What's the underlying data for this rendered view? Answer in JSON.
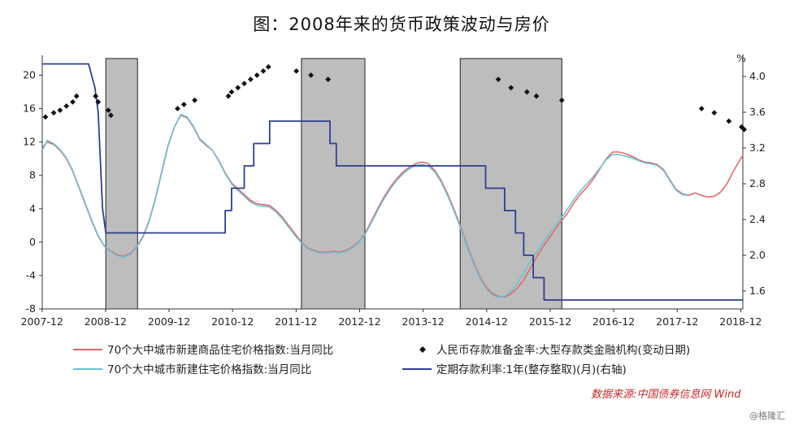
{
  "title": "图：2008年来的货币政策波动与房价",
  "source": "数据来源:中国债券信息网 Wind",
  "watermark": "@格隆汇",
  "chart_data": {
    "type": "line",
    "left_axis": {
      "ticks": [
        20,
        16,
        12,
        8,
        4,
        0,
        -4,
        -8
      ],
      "ylim": [
        -8,
        22
      ]
    },
    "right_axis": {
      "unit": "%",
      "ticks": [
        "4.0",
        "3.6",
        "3.2",
        "2.8",
        "2.4",
        "2.0",
        "1.6"
      ],
      "ylim": [
        1.4,
        4.2
      ]
    },
    "x_ticks": [
      "2007-12",
      "2008-12",
      "2009-12",
      "2010-12",
      "2011-12",
      "2012-12",
      "2013-12",
      "2014-12",
      "2015-12",
      "2016-12",
      "2017-12",
      "2018-12"
    ],
    "xlim": [
      2007.92,
      2018.95
    ],
    "shaded_periods": [
      [
        2008.92,
        2009.42
      ],
      [
        2012.0,
        2013.0
      ],
      [
        2014.5,
        2016.1
      ]
    ],
    "series": [
      {
        "name": "70个大中城市新建商品住宅价格指数:当月同比",
        "color": "#e06a6a",
        "axis": "left",
        "points": [
          [
            2007.92,
            11.3
          ],
          [
            2008.0,
            12.0
          ],
          [
            2008.1,
            11.7
          ],
          [
            2008.2,
            11.0
          ],
          [
            2008.3,
            10.0
          ],
          [
            2008.4,
            8.5
          ],
          [
            2008.5,
            6.5
          ],
          [
            2008.6,
            4.5
          ],
          [
            2008.7,
            2.5
          ],
          [
            2008.8,
            0.7
          ],
          [
            2008.9,
            -0.5
          ],
          [
            2009.0,
            -1.1
          ],
          [
            2009.1,
            -1.5
          ],
          [
            2009.2,
            -1.7
          ],
          [
            2009.3,
            -1.4
          ],
          [
            2009.4,
            -0.6
          ],
          [
            2009.5,
            0.6
          ],
          [
            2009.6,
            2.5
          ],
          [
            2009.7,
            5.2
          ],
          [
            2009.8,
            8.4
          ],
          [
            2009.9,
            11.6
          ],
          [
            2010.0,
            13.8
          ],
          [
            2010.1,
            15.2
          ],
          [
            2010.2,
            14.9
          ],
          [
            2010.3,
            13.8
          ],
          [
            2010.4,
            12.3
          ],
          [
            2010.5,
            11.6
          ],
          [
            2010.6,
            11.0
          ],
          [
            2010.7,
            9.8
          ],
          [
            2010.8,
            8.3
          ],
          [
            2010.9,
            7.1
          ],
          [
            2011.0,
            6.4
          ],
          [
            2011.1,
            5.7
          ],
          [
            2011.2,
            5.0
          ],
          [
            2011.3,
            4.6
          ],
          [
            2011.4,
            4.5
          ],
          [
            2011.5,
            4.4
          ],
          [
            2011.6,
            3.8
          ],
          [
            2011.7,
            3.0
          ],
          [
            2011.8,
            2.0
          ],
          [
            2011.9,
            1.0
          ],
          [
            2012.0,
            0.0
          ],
          [
            2012.1,
            -0.7
          ],
          [
            2012.2,
            -1.0
          ],
          [
            2012.3,
            -1.2
          ],
          [
            2012.4,
            -1.2
          ],
          [
            2012.5,
            -1.1
          ],
          [
            2012.6,
            -1.2
          ],
          [
            2012.7,
            -1.0
          ],
          [
            2012.8,
            -0.6
          ],
          [
            2012.9,
            0.0
          ],
          [
            2013.0,
            1.0
          ],
          [
            2013.1,
            2.5
          ],
          [
            2013.2,
            4.0
          ],
          [
            2013.3,
            5.4
          ],
          [
            2013.4,
            6.6
          ],
          [
            2013.5,
            7.6
          ],
          [
            2013.6,
            8.4
          ],
          [
            2013.7,
            9.0
          ],
          [
            2013.8,
            9.4
          ],
          [
            2013.9,
            9.6
          ],
          [
            2014.0,
            9.4
          ],
          [
            2014.1,
            8.6
          ],
          [
            2014.2,
            7.4
          ],
          [
            2014.3,
            5.8
          ],
          [
            2014.4,
            4.0
          ],
          [
            2014.5,
            2.0
          ],
          [
            2014.6,
            -0.2
          ],
          [
            2014.7,
            -2.2
          ],
          [
            2014.8,
            -4.0
          ],
          [
            2014.9,
            -5.3
          ],
          [
            2015.0,
            -6.1
          ],
          [
            2015.1,
            -6.5
          ],
          [
            2015.2,
            -6.6
          ],
          [
            2015.3,
            -6.2
          ],
          [
            2015.4,
            -5.5
          ],
          [
            2015.5,
            -4.5
          ],
          [
            2015.6,
            -3.2
          ],
          [
            2015.7,
            -1.8
          ],
          [
            2015.8,
            -0.6
          ],
          [
            2015.9,
            0.5
          ],
          [
            2016.0,
            1.6
          ],
          [
            2016.1,
            2.6
          ],
          [
            2016.2,
            3.6
          ],
          [
            2016.3,
            4.8
          ],
          [
            2016.4,
            5.8
          ],
          [
            2016.5,
            6.6
          ],
          [
            2016.6,
            7.6
          ],
          [
            2016.7,
            8.8
          ],
          [
            2016.8,
            10.0
          ],
          [
            2016.9,
            10.8
          ],
          [
            2017.0,
            10.8
          ],
          [
            2017.1,
            10.6
          ],
          [
            2017.2,
            10.3
          ],
          [
            2017.3,
            9.9
          ],
          [
            2017.4,
            9.6
          ],
          [
            2017.5,
            9.5
          ],
          [
            2017.6,
            9.3
          ],
          [
            2017.7,
            8.7
          ],
          [
            2017.8,
            7.5
          ],
          [
            2017.9,
            6.3
          ],
          [
            2018.0,
            5.8
          ],
          [
            2018.1,
            5.6
          ],
          [
            2018.2,
            5.9
          ],
          [
            2018.3,
            5.6
          ],
          [
            2018.4,
            5.4
          ],
          [
            2018.5,
            5.5
          ],
          [
            2018.6,
            6.0
          ],
          [
            2018.7,
            7.0
          ],
          [
            2018.8,
            8.5
          ],
          [
            2018.9,
            9.8
          ],
          [
            2018.95,
            10.4
          ]
        ]
      },
      {
        "name": "70个大中城市新建住宅价格指数:当月同比",
        "color": "#6fbfd4",
        "axis": "left",
        "points": [
          [
            2007.92,
            11.0
          ],
          [
            2008.0,
            12.2
          ],
          [
            2008.1,
            11.8
          ],
          [
            2008.2,
            11.1
          ],
          [
            2008.3,
            10.1
          ],
          [
            2008.4,
            8.6
          ],
          [
            2008.5,
            6.6
          ],
          [
            2008.6,
            4.6
          ],
          [
            2008.7,
            2.6
          ],
          [
            2008.8,
            0.8
          ],
          [
            2008.9,
            -0.5
          ],
          [
            2009.0,
            -1.2
          ],
          [
            2009.1,
            -1.6
          ],
          [
            2009.2,
            -1.8
          ],
          [
            2009.3,
            -1.5
          ],
          [
            2009.4,
            -0.7
          ],
          [
            2009.5,
            0.5
          ],
          [
            2009.6,
            2.4
          ],
          [
            2009.7,
            5.1
          ],
          [
            2009.8,
            8.3
          ],
          [
            2009.9,
            11.5
          ],
          [
            2010.0,
            13.8
          ],
          [
            2010.1,
            15.3
          ],
          [
            2010.2,
            15.0
          ],
          [
            2010.3,
            13.9
          ],
          [
            2010.4,
            12.4
          ],
          [
            2010.5,
            11.7
          ],
          [
            2010.6,
            11.0
          ],
          [
            2010.7,
            9.7
          ],
          [
            2010.8,
            8.2
          ],
          [
            2010.9,
            7.0
          ],
          [
            2011.0,
            6.2
          ],
          [
            2011.1,
            5.5
          ],
          [
            2011.2,
            4.8
          ],
          [
            2011.3,
            4.4
          ],
          [
            2011.4,
            4.3
          ],
          [
            2011.5,
            4.2
          ],
          [
            2011.6,
            3.6
          ],
          [
            2011.7,
            2.8
          ],
          [
            2011.8,
            1.8
          ],
          [
            2011.9,
            0.8
          ],
          [
            2012.0,
            -0.1
          ],
          [
            2012.1,
            -0.8
          ],
          [
            2012.2,
            -1.1
          ],
          [
            2012.3,
            -1.3
          ],
          [
            2012.4,
            -1.3
          ],
          [
            2012.5,
            -1.2
          ],
          [
            2012.6,
            -1.3
          ],
          [
            2012.7,
            -1.1
          ],
          [
            2012.8,
            -0.7
          ],
          [
            2012.9,
            -0.1
          ],
          [
            2013.0,
            0.9
          ],
          [
            2013.1,
            2.3
          ],
          [
            2013.2,
            3.8
          ],
          [
            2013.3,
            5.2
          ],
          [
            2013.4,
            6.4
          ],
          [
            2013.5,
            7.4
          ],
          [
            2013.6,
            8.2
          ],
          [
            2013.7,
            8.8
          ],
          [
            2013.8,
            9.2
          ],
          [
            2013.9,
            9.3
          ],
          [
            2014.0,
            9.1
          ],
          [
            2014.1,
            8.4
          ],
          [
            2014.2,
            7.2
          ],
          [
            2014.3,
            5.6
          ],
          [
            2014.4,
            3.8
          ],
          [
            2014.5,
            1.8
          ],
          [
            2014.6,
            -0.4
          ],
          [
            2014.7,
            -2.4
          ],
          [
            2014.8,
            -4.2
          ],
          [
            2014.9,
            -5.5
          ],
          [
            2015.0,
            -6.3
          ],
          [
            2015.1,
            -6.6
          ],
          [
            2015.2,
            -6.5
          ],
          [
            2015.3,
            -5.9
          ],
          [
            2015.4,
            -4.9
          ],
          [
            2015.5,
            -3.7
          ],
          [
            2015.6,
            -2.4
          ],
          [
            2015.7,
            -1.2
          ],
          [
            2015.8,
            -0.1
          ],
          [
            2015.9,
            1.0
          ],
          [
            2016.0,
            2.0
          ],
          [
            2016.1,
            3.0
          ],
          [
            2016.2,
            4.1
          ],
          [
            2016.3,
            5.2
          ],
          [
            2016.4,
            6.2
          ],
          [
            2016.5,
            7.0
          ],
          [
            2016.6,
            7.9
          ],
          [
            2016.7,
            8.9
          ],
          [
            2016.8,
            9.9
          ],
          [
            2016.9,
            10.5
          ],
          [
            2017.0,
            10.5
          ],
          [
            2017.1,
            10.3
          ],
          [
            2017.2,
            10.1
          ],
          [
            2017.3,
            9.8
          ],
          [
            2017.4,
            9.5
          ],
          [
            2017.5,
            9.4
          ],
          [
            2017.6,
            9.2
          ],
          [
            2017.7,
            8.6
          ],
          [
            2017.8,
            7.4
          ],
          [
            2017.9,
            6.2
          ],
          [
            2018.0,
            5.7
          ],
          [
            2018.1,
            5.6
          ]
        ]
      },
      {
        "name": "定期存款利率:1年(整存整取)(月)(右轴)",
        "color": "#2d3f8f",
        "axis": "right",
        "step": true,
        "points": [
          [
            2007.92,
            4.14
          ],
          [
            2008.65,
            4.14
          ],
          [
            2008.75,
            3.87
          ],
          [
            2008.8,
            3.6
          ],
          [
            2008.87,
            2.52
          ],
          [
            2008.92,
            2.25
          ],
          [
            2010.8,
            2.25
          ],
          [
            2010.8,
            2.5
          ],
          [
            2010.9,
            2.5
          ],
          [
            2010.9,
            2.75
          ],
          [
            2011.1,
            2.75
          ],
          [
            2011.1,
            3.0
          ],
          [
            2011.25,
            3.0
          ],
          [
            2011.25,
            3.25
          ],
          [
            2011.5,
            3.25
          ],
          [
            2011.5,
            3.5
          ],
          [
            2012.45,
            3.5
          ],
          [
            2012.45,
            3.25
          ],
          [
            2012.55,
            3.25
          ],
          [
            2012.55,
            3.0
          ],
          [
            2014.9,
            3.0
          ],
          [
            2014.9,
            2.75
          ],
          [
            2015.2,
            2.75
          ],
          [
            2015.2,
            2.5
          ],
          [
            2015.37,
            2.5
          ],
          [
            2015.37,
            2.25
          ],
          [
            2015.5,
            2.25
          ],
          [
            2015.5,
            2.0
          ],
          [
            2015.65,
            2.0
          ],
          [
            2015.65,
            1.75
          ],
          [
            2015.82,
            1.75
          ],
          [
            2015.82,
            1.5
          ],
          [
            2018.95,
            1.5
          ]
        ]
      },
      {
        "name": "人民币存款准备金率:大型存款类金融机构(变动日期)",
        "color": "#111111",
        "axis": "left",
        "marker": "diamond",
        "points": [
          [
            2007.97,
            15.0
          ],
          [
            2008.1,
            15.5
          ],
          [
            2008.2,
            15.8
          ],
          [
            2008.3,
            16.3
          ],
          [
            2008.4,
            16.8
          ],
          [
            2008.46,
            17.5
          ],
          [
            2008.76,
            17.5
          ],
          [
            2008.8,
            16.8
          ],
          [
            2008.96,
            15.8
          ],
          [
            2009.0,
            15.2
          ],
          [
            2010.05,
            16.0
          ],
          [
            2010.15,
            16.5
          ],
          [
            2010.32,
            17.0
          ],
          [
            2010.85,
            17.5
          ],
          [
            2010.9,
            18.0
          ],
          [
            2011.0,
            18.5
          ],
          [
            2011.1,
            19.0
          ],
          [
            2011.2,
            19.5
          ],
          [
            2011.3,
            20.0
          ],
          [
            2011.4,
            20.5
          ],
          [
            2011.48,
            21.0
          ],
          [
            2011.92,
            20.5
          ],
          [
            2012.15,
            20.0
          ],
          [
            2012.42,
            19.5
          ],
          [
            2015.1,
            19.5
          ],
          [
            2015.3,
            18.5
          ],
          [
            2015.55,
            18.0
          ],
          [
            2015.7,
            17.5
          ],
          [
            2016.1,
            17.0
          ],
          [
            2018.3,
            16.0
          ],
          [
            2018.5,
            15.5
          ],
          [
            2018.73,
            14.5
          ],
          [
            2018.93,
            13.8
          ],
          [
            2018.97,
            13.5
          ]
        ]
      }
    ]
  }
}
